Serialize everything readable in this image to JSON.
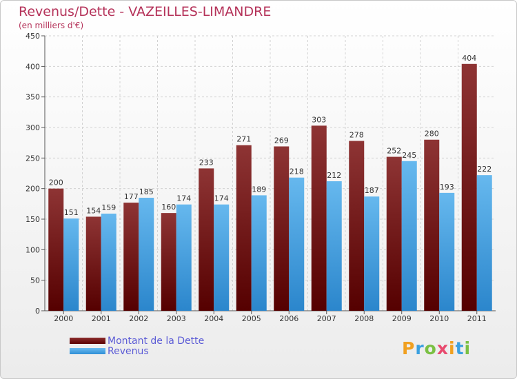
{
  "title": "Revenus/Dette - VAZEILLES-LIMANDRE",
  "subtitle": "(en milliers d'€)",
  "logo": {
    "letters": [
      "P",
      "r",
      "o",
      "x",
      "i",
      "t",
      "i"
    ],
    "colors": [
      "#f0a020",
      "#3aa0e0",
      "#7ac043",
      "#e84a6f",
      "#f0a020",
      "#3aa0e0",
      "#7ac043"
    ]
  },
  "legend": {
    "items": [
      {
        "label": "Montant de la Dette",
        "color": "#7a1a1a"
      },
      {
        "label": "Revenus",
        "color": "#4aa8e8"
      }
    ]
  },
  "chart_data": {
    "type": "bar",
    "categories": [
      "2000",
      "2001",
      "2002",
      "2003",
      "2004",
      "2005",
      "2006",
      "2007",
      "2008",
      "2009",
      "2010",
      "2011"
    ],
    "series": [
      {
        "name": "Montant de la Dette",
        "values": [
          200,
          154,
          177,
          160,
          233,
          271,
          269,
          303,
          278,
          252,
          280,
          404
        ],
        "color": "#7a1a1a"
      },
      {
        "name": "Revenus",
        "values": [
          151,
          159,
          185,
          174,
          174,
          189,
          218,
          212,
          187,
          245,
          193,
          222
        ],
        "color": "#4aa8e8"
      }
    ],
    "yticks": [
      0,
      50,
      100,
      150,
      200,
      250,
      300,
      350,
      400,
      450
    ],
    "ylim": [
      0,
      450
    ],
    "grid": true,
    "legend_position": "bottom-left"
  }
}
